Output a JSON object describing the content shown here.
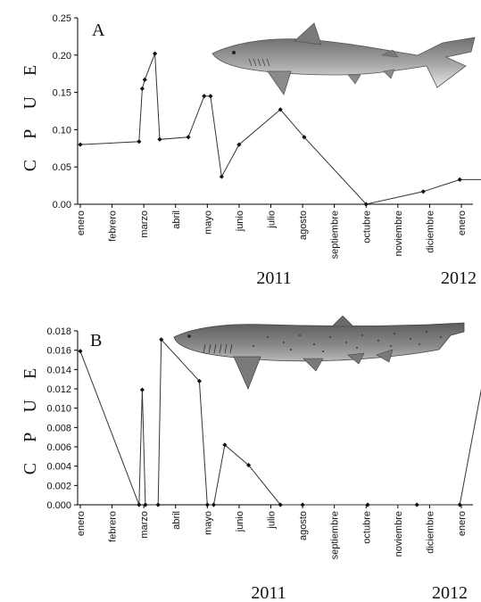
{
  "chart_data": [
    {
      "type": "line",
      "panel_label": "A",
      "ylabel": "C P U E",
      "ylim": [
        0,
        0.25
      ],
      "yticks": [
        "0.00",
        "0.05",
        "0.10",
        "0.15",
        "0.20",
        "0.25"
      ],
      "months": [
        "enero",
        "febrero",
        "marzo",
        "abril",
        "mayo",
        "junio",
        "julio",
        "agosto",
        "septiembre",
        "octubre",
        "noviembre",
        "diciembre",
        "enero"
      ],
      "years": [
        "2011",
        "2012"
      ],
      "illustration": "shark-illustration-grey",
      "series": [
        {
          "x": [
            0.0,
            1.85,
            1.95,
            2.03,
            2.35,
            2.5,
            3.4,
            3.9,
            4.1,
            4.45,
            5.0,
            6.3,
            7.05,
            9.0,
            10.8,
            11.95,
            12.9
          ],
          "y": [
            0.08,
            0.084,
            0.155,
            0.167,
            0.202,
            0.087,
            0.09,
            0.145,
            0.145,
            0.037,
            0.08,
            0.127,
            0.09,
            0.0,
            0.017,
            0.033,
            0.033
          ]
        }
      ]
    },
    {
      "type": "line",
      "panel_label": "B",
      "ylabel": "C P U E",
      "ylim": [
        0,
        0.018
      ],
      "yticks": [
        "0.000",
        "0.002",
        "0.004",
        "0.006",
        "0.008",
        "0.010",
        "0.012",
        "0.014",
        "0.016",
        "0.018"
      ],
      "months": [
        "enero",
        "febrero",
        "marzo",
        "abril",
        "mayo",
        "junio",
        "julio",
        "agosto",
        "septiembre",
        "octubre",
        "noviembre",
        "diciembre",
        "enero"
      ],
      "years": [
        "2011",
        "2012"
      ],
      "illustration": "shark-illustration-spotted",
      "series": [
        {
          "x": [
            0.0,
            1.85,
            1.95,
            2.05,
            2.45,
            2.55,
            3.75,
            4.0,
            4.2,
            4.55,
            5.3,
            6.3,
            7.0,
            9.05,
            10.6,
            11.95,
            12.9
          ],
          "y": [
            0.0159,
            0.0,
            0.0119,
            0.0,
            0.0,
            0.0171,
            0.0128,
            0.0,
            0.0,
            0.0062,
            0.0041,
            0.0,
            0.0,
            0.0,
            0.0,
            0.0,
            0.0167
          ]
        }
      ]
    }
  ]
}
